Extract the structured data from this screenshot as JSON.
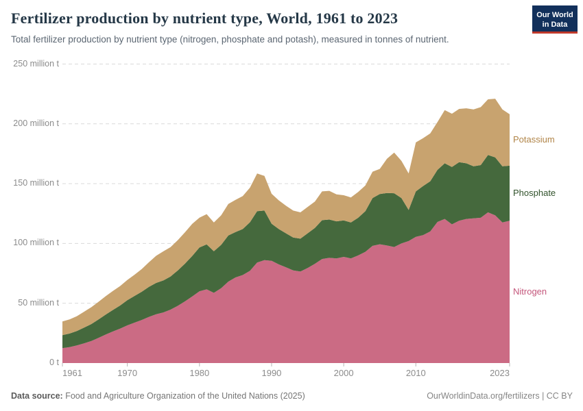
{
  "header": {
    "title": "Fertilizer production by nutrient type, World, 1961 to 2023",
    "subtitle": "Total fertilizer production by nutrient type (nitrogen, phosphate and potash), measured in tonnes of nutrient.",
    "logo": {
      "line1": "Our World",
      "line2": "in Data"
    }
  },
  "footer": {
    "source_label": "Data source:",
    "source_text": "Food and Agriculture Organization of the United Nations (2025)",
    "credit": "OurWorldinData.org/fertilizers | CC BY"
  },
  "colors": {
    "background": "#ffffff",
    "gridline": "#d9d9d9",
    "tick": "#b5b5b5",
    "axis_text": "#8b8b8b",
    "title_text": "#253847",
    "subtitle_text": "#5b6672",
    "logo_bg": "#12305b",
    "logo_accent": "#c0392b"
  },
  "chart_data": {
    "type": "area",
    "stacked": true,
    "title": "Fertilizer production by nutrient type, World, 1961 to 2023",
    "unit": "tonnes of nutrient (millions)",
    "xlim": [
      1961,
      2023
    ],
    "ylim": [
      0,
      250
    ],
    "grid": "dashed-horizontal",
    "legend_position": "right-of-plot",
    "x_ticks": [
      1961,
      1970,
      1980,
      1990,
      2000,
      2010,
      2023
    ],
    "y_ticks": [
      {
        "value": 0,
        "label": "0 t"
      },
      {
        "value": 50,
        "label": "50 million t"
      },
      {
        "value": 100,
        "label": "100 million t"
      },
      {
        "value": 150,
        "label": "150 million t"
      },
      {
        "value": 200,
        "label": "200 million t"
      },
      {
        "value": 250,
        "label": "250 million t"
      }
    ],
    "x": [
      1961,
      1962,
      1963,
      1964,
      1965,
      1966,
      1967,
      1968,
      1969,
      1970,
      1971,
      1972,
      1973,
      1974,
      1975,
      1976,
      1977,
      1978,
      1979,
      1980,
      1981,
      1982,
      1983,
      1984,
      1985,
      1986,
      1987,
      1988,
      1989,
      1990,
      1991,
      1992,
      1993,
      1994,
      1995,
      1996,
      1997,
      1998,
      1999,
      2000,
      2001,
      2002,
      2003,
      2004,
      2005,
      2006,
      2007,
      2008,
      2009,
      2010,
      2011,
      2012,
      2013,
      2014,
      2015,
      2016,
      2017,
      2018,
      2019,
      2020,
      2021,
      2022,
      2023
    ],
    "series": [
      {
        "name": "Nitrogen",
        "color": "#cb6b84",
        "label_color": "#c4577c",
        "values": [
          12.4,
          13.3,
          14.7,
          16.5,
          18.4,
          21.0,
          23.8,
          26.4,
          28.8,
          31.5,
          33.8,
          36.0,
          38.6,
          40.8,
          42.3,
          44.7,
          47.9,
          51.6,
          55.7,
          60.0,
          61.6,
          58.7,
          62.6,
          68.1,
          71.6,
          73.6,
          77.1,
          84.0,
          86.0,
          85.5,
          82.5,
          80.0,
          77.5,
          76.5,
          79.5,
          83.0,
          87.0,
          88.0,
          87.5,
          88.8,
          87.5,
          90.0,
          93.0,
          98.0,
          99.3,
          98.3,
          97.0,
          100.0,
          102.0,
          105.5,
          107.0,
          110.0,
          118.0,
          120.5,
          116.0,
          119.0,
          120.5,
          121.0,
          121.5,
          126.0,
          123.5,
          117.5,
          119.0
        ]
      },
      {
        "name": "Phosphate",
        "color": "#45693d",
        "label_color": "#31522b",
        "values": [
          10.9,
          11.4,
          12.1,
          13.1,
          14.2,
          15.4,
          16.7,
          18.0,
          19.3,
          21.0,
          22.3,
          23.6,
          25.1,
          26.2,
          26.8,
          27.7,
          29.6,
          31.6,
          33.9,
          36.6,
          37.6,
          34.8,
          36.2,
          38.6,
          37.9,
          38.4,
          40.6,
          43.0,
          41.5,
          31.0,
          29.5,
          28.5,
          27.5,
          27.5,
          29.0,
          30.0,
          32.5,
          32.0,
          31.0,
          30.5,
          30.0,
          31.5,
          34.0,
          40.0,
          42.0,
          43.9,
          45.0,
          38.0,
          26.0,
          38.0,
          41.0,
          42.0,
          43.5,
          46.5,
          48.0,
          49.0,
          46.5,
          43.5,
          44.0,
          48.0,
          48.5,
          47.0,
          46.0
        ]
      },
      {
        "name": "Potassium",
        "color": "#c8a36f",
        "label_color": "#b08447",
        "values": [
          11.5,
          11.8,
          12.4,
          13.3,
          14.1,
          14.8,
          15.4,
          15.9,
          16.3,
          16.9,
          17.8,
          19.0,
          20.6,
          22.7,
          24.3,
          24.5,
          25.3,
          26.2,
          26.8,
          25.0,
          25.3,
          24.0,
          24.7,
          26.3,
          27.0,
          27.6,
          28.9,
          31.5,
          29.0,
          25.0,
          24.0,
          23.0,
          22.5,
          22.0,
          22.0,
          22.0,
          24.0,
          24.0,
          22.5,
          21.0,
          21.0,
          21.5,
          21.5,
          22.0,
          21.0,
          28.6,
          34.0,
          31.0,
          30.5,
          41.0,
          40.0,
          40.0,
          40.0,
          44.5,
          44.5,
          44.5,
          46.0,
          47.5,
          48.5,
          46.5,
          49.0,
          47.5,
          43.0
        ]
      }
    ]
  }
}
